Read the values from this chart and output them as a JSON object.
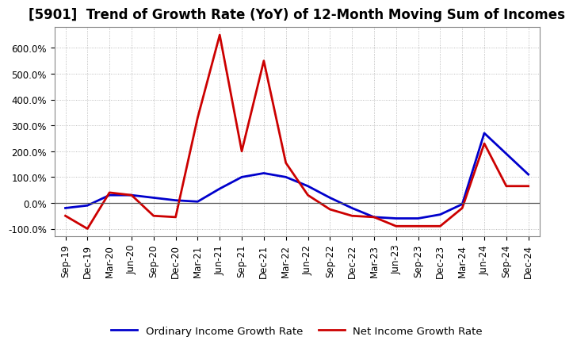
{
  "title": "[5901]  Trend of Growth Rate (YoY) of 12-Month Moving Sum of Incomes",
  "x_labels": [
    "Sep-19",
    "Dec-19",
    "Mar-20",
    "Jun-20",
    "Sep-20",
    "Dec-20",
    "Mar-21",
    "Jun-21",
    "Sep-21",
    "Dec-21",
    "Mar-22",
    "Jun-22",
    "Sep-22",
    "Dec-22",
    "Mar-23",
    "Jun-23",
    "Sep-23",
    "Dec-23",
    "Mar-24",
    "Jun-24",
    "Sep-24",
    "Dec-24"
  ],
  "ordinary_income": [
    -20,
    -10,
    30,
    30,
    20,
    10,
    5,
    55,
    100,
    115,
    100,
    65,
    20,
    -20,
    -55,
    -60,
    -60,
    -45,
    -5,
    270,
    190,
    110
  ],
  "net_income": [
    -50,
    -100,
    40,
    30,
    -50,
    -55,
    330,
    650,
    200,
    550,
    155,
    30,
    -25,
    -50,
    -55,
    -90,
    -90,
    -90,
    -20,
    230,
    65,
    65
  ],
  "ylim": [
    -130,
    680
  ],
  "yticks": [
    -100,
    0,
    100,
    200,
    300,
    400,
    500,
    600
  ],
  "ordinary_color": "#0000cc",
  "net_color": "#cc0000",
  "background_color": "#ffffff",
  "grid_color": "#999999",
  "legend_ordinary": "Ordinary Income Growth Rate",
  "legend_net": "Net Income Growth Rate",
  "title_fontsize": 12,
  "tick_fontsize": 8.5,
  "legend_fontsize": 9.5
}
